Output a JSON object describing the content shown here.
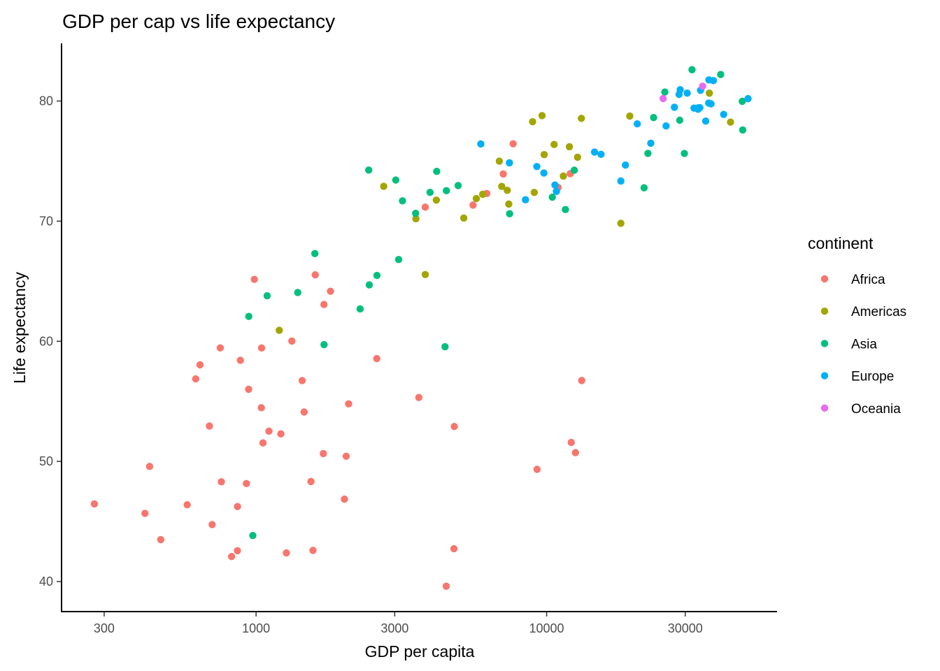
{
  "chart_data": {
    "type": "scatter",
    "title": "GDP per cap vs life expectancy",
    "xlabel": "GDP per capita",
    "ylabel": "Life expectancy",
    "xscale": "log10",
    "xlim": [
      214,
      62100
    ],
    "ylim": [
      37.5,
      84.8
    ],
    "x_ticks": [
      {
        "value": 300,
        "label": "300"
      },
      {
        "value": 1000,
        "label": "1000"
      },
      {
        "value": 3000,
        "label": "3000"
      },
      {
        "value": 10000,
        "label": "10000"
      },
      {
        "value": 30000,
        "label": "30000"
      }
    ],
    "y_ticks": [
      {
        "value": 40,
        "label": "40"
      },
      {
        "value": 50,
        "label": "50"
      },
      {
        "value": 60,
        "label": "60"
      },
      {
        "value": 70,
        "label": "70"
      },
      {
        "value": 80,
        "label": "80"
      }
    ],
    "grid": false,
    "legend": {
      "title": "continent",
      "placement": "right"
    },
    "series": [
      {
        "name": "Africa",
        "color": "#F8766D",
        "points": [
          [
            6223.37,
            72.301
          ],
          [
            4797.23,
            42.731
          ],
          [
            1441.28,
            56.728
          ],
          [
            12569.85,
            50.728
          ],
          [
            1217.03,
            52.295
          ],
          [
            430.07,
            49.58
          ],
          [
            2042.1,
            50.43
          ],
          [
            706.02,
            44.741
          ],
          [
            1704.06,
            50.651
          ],
          [
            986.15,
            65.152
          ],
          [
            277.55,
            46.462
          ],
          [
            3632.56,
            55.322
          ],
          [
            1544.75,
            48.328
          ],
          [
            2082.48,
            54.791
          ],
          [
            5581.18,
            71.338
          ],
          [
            12154.09,
            51.579
          ],
          [
            641.37,
            58.04
          ],
          [
            690.81,
            52.947
          ],
          [
            13206.48,
            56.735
          ],
          [
            752.75,
            59.448
          ],
          [
            1327.61,
            60.022
          ],
          [
            942.65,
            56.007
          ],
          [
            579.23,
            46.388
          ],
          [
            1463.25,
            54.11
          ],
          [
            1569.33,
            42.592
          ],
          [
            414.51,
            45.678
          ],
          [
            12057.5,
            73.952
          ],
          [
            1044.77,
            59.443
          ],
          [
            759.35,
            48.303
          ],
          [
            1042.58,
            54.467
          ],
          [
            1803.15,
            64.164
          ],
          [
            10956.99,
            72.801
          ],
          [
            3820.18,
            71.164
          ],
          [
            823.69,
            42.082
          ],
          [
            4811.06,
            52.906
          ],
          [
            619.68,
            56.867
          ],
          [
            2013.98,
            46.859
          ],
          [
            7670.12,
            76.442
          ],
          [
            863.09,
            46.242
          ],
          [
            1598.44,
            65.528
          ],
          [
            1712.47,
            63.062
          ],
          [
            862.54,
            42.568
          ],
          [
            926.14,
            48.159
          ],
          [
            9269.66,
            49.339
          ],
          [
            2602.39,
            58.556
          ],
          [
            4513.48,
            39.613
          ],
          [
            1107.48,
            52.517
          ],
          [
            882.97,
            58.42
          ],
          [
            7092.92,
            73.923
          ],
          [
            1056.38,
            51.542
          ],
          [
            1271.21,
            42.384
          ],
          [
            469.71,
            43.487
          ]
        ]
      },
      {
        "name": "Americas",
        "color": "#A3A500",
        "points": [
          [
            12779.38,
            75.32
          ],
          [
            3822.14,
            65.554
          ],
          [
            9065.8,
            72.39
          ],
          [
            36319.24,
            80.653
          ],
          [
            13171.64,
            78.553
          ],
          [
            7006.58,
            72.889
          ],
          [
            9645.06,
            78.782
          ],
          [
            8948.1,
            78.273
          ],
          [
            6025.37,
            72.235
          ],
          [
            6873.26,
            74.994
          ],
          [
            5728.35,
            71.878
          ],
          [
            5186.05,
            70.259
          ],
          [
            1201.64,
            60.916
          ],
          [
            3548.33,
            70.198
          ],
          [
            7320.88,
            72.567
          ],
          [
            11977.57,
            76.195
          ],
          [
            2749.32,
            72.899
          ],
          [
            9809.19,
            75.537
          ],
          [
            4172.84,
            71.752
          ],
          [
            7408.91,
            71.421
          ],
          [
            19328.71,
            78.746
          ],
          [
            18008.51,
            69.819
          ],
          [
            42951.65,
            78.242
          ],
          [
            10611.46,
            76.384
          ],
          [
            11415.81,
            73.747
          ]
        ]
      },
      {
        "name": "Asia",
        "color": "#00BF7D",
        "points": [
          [
            974.58,
            43.828
          ],
          [
            29796.05,
            75.635
          ],
          [
            1391.25,
            64.062
          ],
          [
            1713.78,
            59.723
          ],
          [
            4959.11,
            72.961
          ],
          [
            39724.98,
            82.208
          ],
          [
            2452.21,
            64.698
          ],
          [
            3540.65,
            70.65
          ],
          [
            11605.71,
            70.964
          ],
          [
            4471.06,
            59.545
          ],
          [
            25523.28,
            80.745
          ],
          [
            31656.07,
            82.603
          ],
          [
            4519.46,
            72.535
          ],
          [
            1593.07,
            67.297
          ],
          [
            23348.14,
            78.623
          ],
          [
            47306.99,
            77.588
          ],
          [
            10461.06,
            71.993
          ],
          [
            12451.66,
            74.241
          ],
          [
            3095.77,
            66.803
          ],
          [
            944.0,
            62.069
          ],
          [
            1091.36,
            63.785
          ],
          [
            22316.19,
            75.64
          ],
          [
            2605.95,
            65.483
          ],
          [
            3190.48,
            71.688
          ],
          [
            21654.83,
            72.777
          ],
          [
            47143.18,
            79.972
          ],
          [
            3970.1,
            72.396
          ],
          [
            4184.55,
            74.143
          ],
          [
            28718.28,
            78.4
          ],
          [
            7458.4,
            70.616
          ],
          [
            2441.58,
            74.249
          ],
          [
            3025.35,
            73.422
          ],
          [
            2280.77,
            62.698
          ]
        ]
      },
      {
        "name": "Europe",
        "color": "#00B0F6",
        "points": [
          [
            5937.03,
            76.423
          ],
          [
            36126.49,
            79.829
          ],
          [
            33692.61,
            79.441
          ],
          [
            7446.3,
            74.852
          ],
          [
            10680.79,
            73.005
          ],
          [
            14619.22,
            75.748
          ],
          [
            22833.31,
            76.486
          ],
          [
            35278.42,
            78.332
          ],
          [
            33207.08,
            79.313
          ],
          [
            30470.02,
            80.657
          ],
          [
            32170.37,
            79.406
          ],
          [
            27538.41,
            79.483
          ],
          [
            18008.94,
            73.338
          ],
          [
            36180.79,
            81.757
          ],
          [
            40676.0,
            78.885
          ],
          [
            28569.72,
            80.546
          ],
          [
            9253.9,
            74.543
          ],
          [
            36797.93,
            79.762
          ],
          [
            49357.19,
            80.196
          ],
          [
            15389.92,
            75.563
          ],
          [
            20509.65,
            78.098
          ],
          [
            10808.48,
            72.476
          ],
          [
            9786.53,
            74.002
          ],
          [
            18678.31,
            74.663
          ],
          [
            25768.26,
            77.926
          ],
          [
            28821.06,
            80.941
          ],
          [
            33859.75,
            80.884
          ],
          [
            37506.42,
            81.701
          ],
          [
            8458.28,
            71.777
          ],
          [
            33203.26,
            79.425
          ]
        ]
      },
      {
        "name": "Oceania",
        "color": "#E76BF3",
        "points": [
          [
            34435.37,
            81.235
          ],
          [
            25185.01,
            80.204
          ]
        ]
      }
    ]
  }
}
